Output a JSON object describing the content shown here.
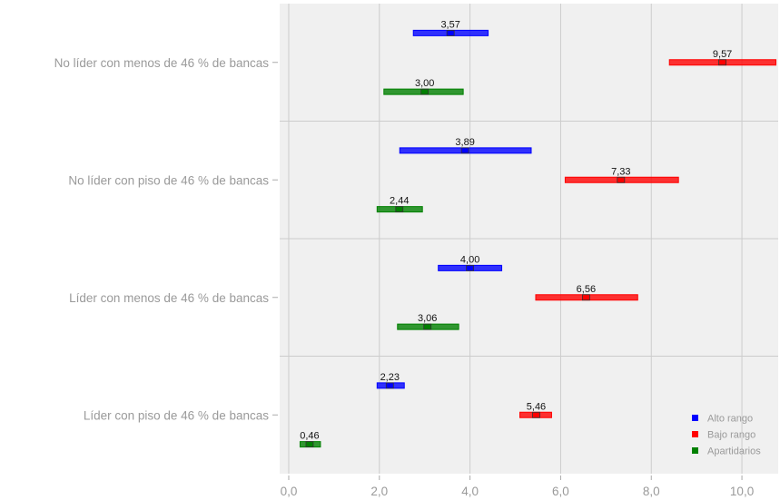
{
  "chart_data": {
    "type": "range-bar",
    "xlim": [
      -0.2,
      10.8
    ],
    "x_ticks": [
      0,
      2,
      4,
      6,
      8,
      10
    ],
    "x_tick_labels": [
      "0,0",
      "2,0",
      "4,0",
      "6,0",
      "8,0",
      "10,0"
    ],
    "grid": true,
    "legend_position": "bottom-right",
    "categories": [
      "No líder con menos de 46 % de bancas",
      "No líder con piso de 46 % de bancas",
      "Líder con menos de 46 % de bancas",
      "Líder con piso de 46 % de bancas"
    ],
    "series": [
      {
        "name": "Alto rango",
        "color": "#0000ff",
        "points": [
          {
            "value": 3.57,
            "label": "3,57",
            "low": 2.75,
            "high": 4.4
          },
          {
            "value": 3.89,
            "label": "3,89",
            "low": 2.45,
            "high": 5.35
          },
          {
            "value": 4.0,
            "label": "4,00",
            "low": 3.3,
            "high": 4.7
          },
          {
            "value": 2.23,
            "label": "2,23",
            "low": 1.95,
            "high": 2.55
          }
        ]
      },
      {
        "name": "Bajo rango",
        "color": "#ff0000",
        "points": [
          {
            "value": 9.57,
            "label": "9,57",
            "low": 8.4,
            "high": 10.75
          },
          {
            "value": 7.33,
            "label": "7,33",
            "low": 6.1,
            "high": 8.6
          },
          {
            "value": 6.56,
            "label": "6,56",
            "low": 5.45,
            "high": 7.7
          },
          {
            "value": 5.46,
            "label": "5,46",
            "low": 5.1,
            "high": 5.8
          }
        ]
      },
      {
        "name": "Apartidarios",
        "color": "#008000",
        "points": [
          {
            "value": 3.0,
            "label": "3,00",
            "low": 2.1,
            "high": 3.85
          },
          {
            "value": 2.44,
            "label": "2,44",
            "low": 1.95,
            "high": 2.95
          },
          {
            "value": 3.06,
            "label": "3,06",
            "low": 2.4,
            "high": 3.75
          },
          {
            "value": 0.46,
            "label": "0,46",
            "low": 0.25,
            "high": 0.7
          }
        ]
      }
    ]
  }
}
